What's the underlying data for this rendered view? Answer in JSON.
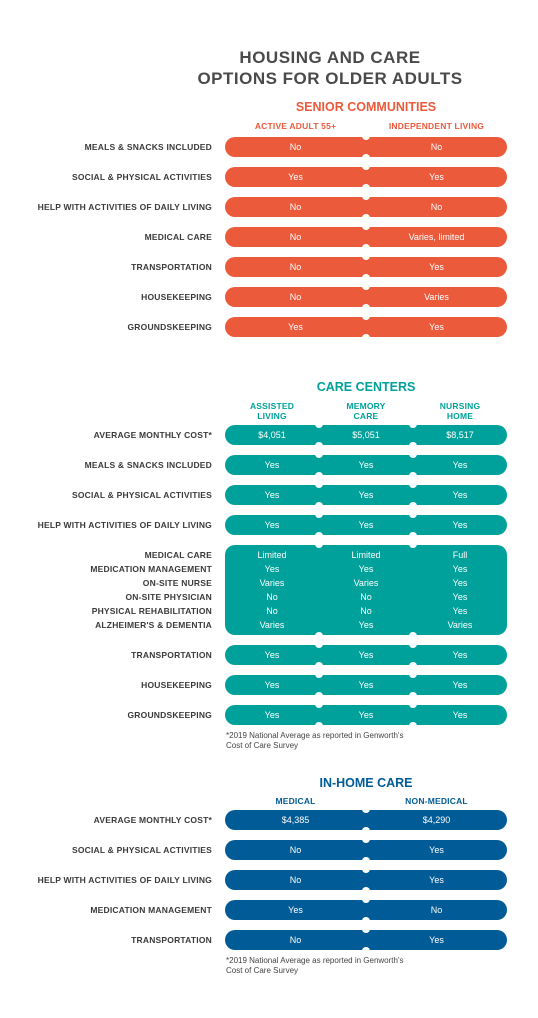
{
  "title": [
    "HOUSING AND CARE",
    "OPTIONS FOR OLDER ADULTS"
  ],
  "colors": {
    "senior": "#ec5a3c",
    "care": "#00a19a",
    "inhome": "#005b96"
  },
  "senior": {
    "title": "SENIOR COMMUNITIES",
    "columns": [
      "ACTIVE ADULT 55+",
      "INDEPENDENT LIVING"
    ],
    "rows": [
      {
        "label": "MEALS & SNACKS INCLUDED",
        "values": [
          "No",
          "No"
        ]
      },
      {
        "label": "SOCIAL & PHYSICAL ACTIVITIES",
        "values": [
          "Yes",
          "Yes"
        ]
      },
      {
        "label": "HELP WITH ACTIVITIES OF DAILY LIVING",
        "values": [
          "No",
          "No"
        ]
      },
      {
        "label": "MEDICAL CARE",
        "values": [
          "No",
          "Varies, limited"
        ]
      },
      {
        "label": "TRANSPORTATION",
        "values": [
          "No",
          "Yes"
        ]
      },
      {
        "label": "HOUSEKEEPING",
        "values": [
          "No",
          "Varies"
        ]
      },
      {
        "label": "GROUNDSKEEPING",
        "values": [
          "Yes",
          "Yes"
        ]
      }
    ]
  },
  "care": {
    "title": "CARE CENTERS",
    "columns": [
      [
        "ASSISTED",
        "LIVING"
      ],
      [
        "MEMORY",
        "CARE"
      ],
      [
        "NURSING",
        "HOME"
      ]
    ],
    "rows_top": [
      {
        "label": "AVERAGE MONTHLY COST*",
        "values": [
          "$4,051",
          "$5,051",
          "$8,517"
        ]
      },
      {
        "label": "MEALS & SNACKS INCLUDED",
        "values": [
          "Yes",
          "Yes",
          "Yes"
        ]
      },
      {
        "label": "SOCIAL & PHYSICAL ACTIVITIES",
        "values": [
          "Yes",
          "Yes",
          "Yes"
        ]
      },
      {
        "label": "HELP WITH ACTIVITIES OF DAILY LIVING",
        "values": [
          "Yes",
          "Yes",
          "Yes"
        ]
      }
    ],
    "group": [
      {
        "label": "MEDICAL CARE",
        "values": [
          "Limited",
          "Limited",
          "Full"
        ]
      },
      {
        "label": "MEDICATION MANAGEMENT",
        "values": [
          "Yes",
          "Yes",
          "Yes"
        ]
      },
      {
        "label": "ON-SITE NURSE",
        "values": [
          "Varies",
          "Varies",
          "Yes"
        ]
      },
      {
        "label": "ON-SITE PHYSICIAN",
        "values": [
          "No",
          "No",
          "Yes"
        ]
      },
      {
        "label": "PHYSICAL REHABILITATION",
        "values": [
          "No",
          "No",
          "Yes"
        ]
      },
      {
        "label": "ALZHEIMER'S & DEMENTIA",
        "values": [
          "Varies",
          "Yes",
          "Varies"
        ]
      }
    ],
    "rows_bottom": [
      {
        "label": "TRANSPORTATION",
        "values": [
          "Yes",
          "Yes",
          "Yes"
        ]
      },
      {
        "label": "HOUSEKEEPING",
        "values": [
          "Yes",
          "Yes",
          "Yes"
        ]
      },
      {
        "label": "GROUNDSKEEPING",
        "values": [
          "Yes",
          "Yes",
          "Yes"
        ]
      }
    ],
    "footnote": [
      "*2019 National Average as reported in Genworth's",
      "Cost of Care Survey"
    ]
  },
  "inhome": {
    "title": "IN-HOME CARE",
    "columns": [
      "MEDICAL",
      "NON-MEDICAL"
    ],
    "rows": [
      {
        "label": "AVERAGE MONTHLY COST*",
        "values": [
          "$4,385",
          "$4,290"
        ]
      },
      {
        "label": "SOCIAL & PHYSICAL ACTIVITIES",
        "values": [
          "No",
          "Yes"
        ]
      },
      {
        "label": "HELP WITH ACTIVITIES OF DAILY LIVING",
        "values": [
          "No",
          "Yes"
        ]
      },
      {
        "label": "MEDICATION MANAGEMENT",
        "values": [
          "Yes",
          "No"
        ]
      },
      {
        "label": "TRANSPORTATION",
        "values": [
          "No",
          "Yes"
        ]
      }
    ],
    "footnote": [
      "*2019 National Average as reported in Genworth's",
      "Cost of Care Survey"
    ]
  }
}
